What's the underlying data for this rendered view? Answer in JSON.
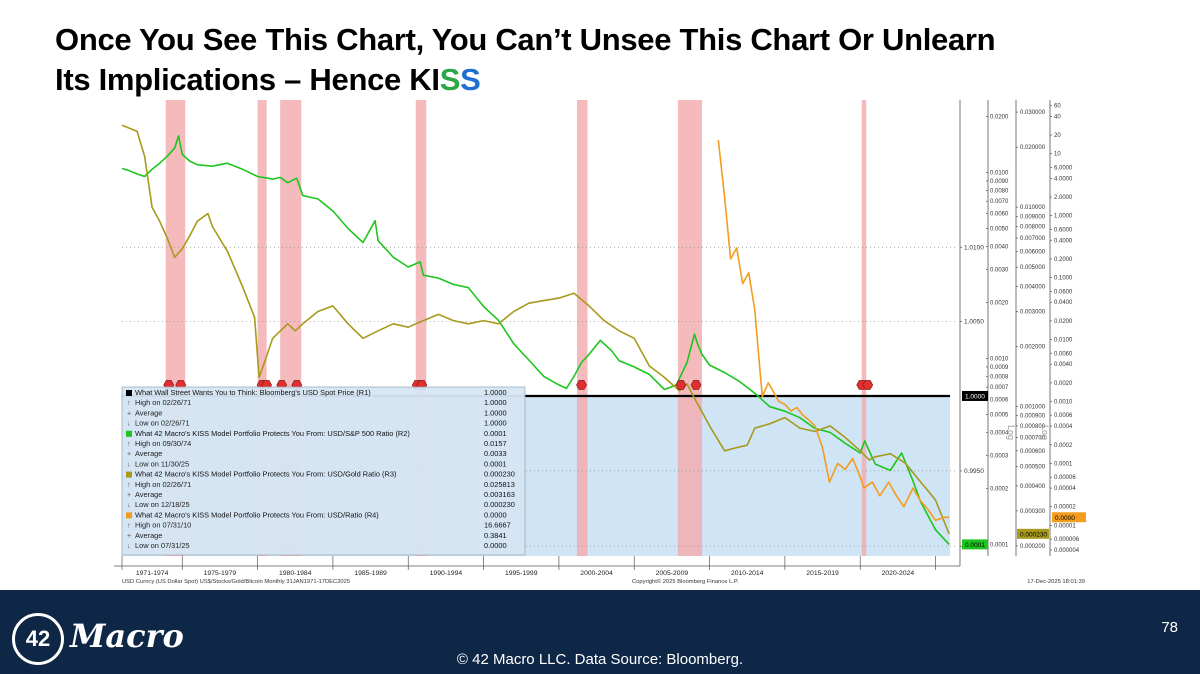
{
  "slide": {
    "title_line1": "Once You See This Chart, You Can’t Unsee This Chart Or Unlearn",
    "title_line2_prefix": "Its Implications – Hence KI",
    "title_s1": "S",
    "title_s2": "S",
    "footer_logo_number": "42",
    "footer_logo_word": "Macro",
    "copyright": "© 42 Macro LLC. Data Source: Bloomberg.",
    "page_number": "78"
  },
  "chart_data": {
    "type": "line",
    "x_tick_labels": [
      "1971-1974",
      "1975-1979",
      "1980-1984",
      "1985-1989",
      "1990-1994",
      "1995-1999",
      "2000-2004",
      "2005-2009",
      "2010-2014",
      "2015-2019",
      "2020-2024"
    ],
    "source_left": "USD Curncy (US Dollar Spot) US$/Stocks/Gold/Bitcoin Monthly 31JAN1971-17DEC2025",
    "source_center": "Copyright© 2025 Bloomberg Finance L.P.",
    "source_right": "17-Dec-2025 18:01:39",
    "log_labels": [
      "Log",
      "Log"
    ],
    "colors": {
      "r1": "#000000",
      "r2": "#1ec51e",
      "r3": "#a79a1c",
      "r4": "#f39c1e",
      "plot_fill": "#cfe4f5",
      "recession": "#f3aeb0",
      "marker": "#e02f2f"
    },
    "recession_shading": [
      {
        "start": 1973.9,
        "end": 1975.2
      },
      {
        "start": 1980.0,
        "end": 1980.6
      },
      {
        "start": 1981.5,
        "end": 1982.9
      },
      {
        "start": 1990.5,
        "end": 1991.2
      },
      {
        "start": 2001.2,
        "end": 2001.9
      },
      {
        "start": 2007.9,
        "end": 2009.5
      },
      {
        "start": 2020.1,
        "end": 2020.4
      }
    ],
    "signal_markers": [
      {
        "date": 1974.1
      },
      {
        "date": 1974.9
      },
      {
        "date": 1980.3
      },
      {
        "date": 1980.6
      },
      {
        "date": 1981.6
      },
      {
        "date": 1982.6
      },
      {
        "date": 1990.6
      },
      {
        "date": 1990.9
      },
      {
        "date": 2001.5
      },
      {
        "date": 2008.1
      },
      {
        "date": 2009.1
      },
      {
        "date": 2020.1
      },
      {
        "date": 2020.5
      }
    ],
    "x_range": [
      1971.0,
      2025.96
    ],
    "axes": [
      {
        "id": "R1",
        "scale": "log",
        "ylim": [
          0.98935,
          1.02
        ],
        "ticks": [
          "1.0100",
          "1.0050",
          "0.9950",
          "0.9900"
        ]
      },
      {
        "id": "R2",
        "scale": "log",
        "ylim": [
          8.66e-05,
          0.0245
        ],
        "ticks": [
          "0.0200",
          "0.0100",
          "0.0090",
          "0.0080",
          "0.0070",
          "0.0060",
          "0.0050",
          "0.0040",
          "0.0030",
          "0.0020",
          "0.0010",
          "0.0009",
          "0.0008",
          "0.0007",
          "0.0006",
          "0.0005",
          "0.0004",
          "0.0003",
          "0.0002",
          "0.0001"
        ]
      },
      {
        "id": "R3",
        "scale": "log",
        "ylim": [
          0.000178,
          0.0345
        ],
        "ticks": [
          "0.030000",
          "0.020000",
          "0.010000",
          "0.009000",
          "0.008000",
          "0.007000",
          "0.006000",
          "0.005000",
          "0.004000",
          "0.003000",
          "0.002000",
          "0.001000",
          "0.000900",
          "0.000800",
          "0.000700",
          "0.000600",
          "0.000500",
          "0.000400",
          "0.000300",
          "0.000200"
        ]
      },
      {
        "id": "R4",
        "scale": "log",
        "ylim": [
          3.2e-06,
          73.6
        ],
        "ticks": [
          "60",
          "40",
          "20",
          "10",
          "6.0000",
          "4.0000",
          "2.0000",
          "1.0000",
          "0.6000",
          "0.4000",
          "0.2000",
          "0.1000",
          "0.0600",
          "0.0400",
          "0.0200",
          "0.0100",
          "0.0060",
          "0.0040",
          "0.0020",
          "0.0010",
          "0.0006",
          "0.0004",
          "0.0002",
          "0.0001",
          "0.00006",
          "0.00004",
          "0.00002",
          "0.00001",
          "0.000006",
          "0.000004"
        ]
      }
    ],
    "last_value_tags": [
      {
        "axis": "R1",
        "label": "1.0000",
        "y": 1.0
      },
      {
        "axis": "R2",
        "label": "0.0001",
        "y": 0.0001
      },
      {
        "axis": "R3",
        "label": "0.000230",
        "y": 0.00023
      },
      {
        "axis": "R4",
        "label": "0.0000",
        "y": 1.35e-05
      }
    ],
    "legend": {
      "rows": [
        {
          "kind": "series",
          "series": "r1",
          "label": "What Wall Street Wants You to Think: Bloomberg's USD Spot Price (R1)",
          "value": "1.0000"
        },
        {
          "kind": "stat",
          "symbol": "↑",
          "label": "High on 02/26/71",
          "value": "1.0000"
        },
        {
          "kind": "stat",
          "symbol": "+",
          "label": "Average",
          "value": "1.0000"
        },
        {
          "kind": "stat",
          "symbol": "↓",
          "label": "Low on 02/26/71",
          "value": "1.0000"
        },
        {
          "kind": "series",
          "series": "r2",
          "label": "What 42 Macro's KISS Model Portfolio Protects You From: USD/S&P 500 Ratio (R2)",
          "value": "0.0001"
        },
        {
          "kind": "stat",
          "symbol": "↑",
          "label": "High on 09/30/74",
          "value": "0.0157"
        },
        {
          "kind": "stat",
          "symbol": "+",
          "label": "Average",
          "value": "0.0033"
        },
        {
          "kind": "stat",
          "symbol": "↓",
          "label": "Low on 11/30/25",
          "value": "0.0001"
        },
        {
          "kind": "series",
          "series": "r3",
          "label": "What 42 Macro's KISS Model Portfolio Protects You From: USD/Gold Ratio (R3)",
          "value": "0.000230"
        },
        {
          "kind": "stat",
          "symbol": "↑",
          "label": "High on 02/26/71",
          "value": "0.025813"
        },
        {
          "kind": "stat",
          "symbol": "+",
          "label": "Average",
          "value": "0.003163"
        },
        {
          "kind": "stat",
          "symbol": "↓",
          "label": "Low on 12/18/25",
          "value": "0.000230"
        },
        {
          "kind": "series",
          "series": "r4",
          "label": "What 42 Macro's KISS Model Portfolio Protects You From: USD/Ratio (R4)",
          "value": "0.0000"
        },
        {
          "kind": "stat",
          "symbol": "↑",
          "label": "High on 07/31/10",
          "value": "16.6667"
        },
        {
          "kind": "stat",
          "symbol": "+",
          "label": "Average",
          "value": "0.3841"
        },
        {
          "kind": "stat",
          "symbol": "↓",
          "label": "Low on 07/31/25",
          "value": "0.0000"
        }
      ]
    },
    "series": [
      {
        "id": "r1",
        "axis": "R1",
        "x": [
          1971.0,
          2025.96
        ],
        "y": [
          1.0,
          1.0
        ]
      },
      {
        "id": "r2",
        "axis": "R2",
        "x": [
          1971.0,
          1971.5,
          1972.0,
          1972.5,
          1973.0,
          1973.5,
          1974.0,
          1974.5,
          1974.75,
          1975.0,
          1975.5,
          1976.0,
          1977.0,
          1978.0,
          1979.0,
          1980.0,
          1981.0,
          1981.5,
          1982.0,
          1982.6,
          1983.0,
          1984.0,
          1985.0,
          1986.0,
          1987.0,
          1987.8,
          1988.0,
          1989.0,
          1990.0,
          1990.8,
          1991.0,
          1992.0,
          1993.0,
          1994.0,
          1995.0,
          1996.0,
          1997.0,
          1998.0,
          1999.0,
          2000.0,
          2000.5,
          2001.0,
          2001.5,
          2002.0,
          2002.75,
          2003.5,
          2004.0,
          2005.0,
          2006.0,
          2007.0,
          2007.8,
          2008.5,
          2009.0,
          2009.2,
          2009.5,
          2010.0,
          2011.0,
          2012.0,
          2013.0,
          2014.0,
          2015.0,
          2016.0,
          2017.0,
          2018.0,
          2019.0,
          2020.0,
          2020.3,
          2021.0,
          2022.0,
          2022.75,
          2023.5,
          2024.0,
          2025.0,
          2025.9
        ],
        "y": [
          0.0105,
          0.0102,
          0.0098,
          0.0095,
          0.0104,
          0.0112,
          0.0122,
          0.0135,
          0.0157,
          0.0125,
          0.0115,
          0.011,
          0.0108,
          0.0112,
          0.0104,
          0.0095,
          0.0092,
          0.0094,
          0.0088,
          0.0093,
          0.0075,
          0.0072,
          0.0062,
          0.005,
          0.0042,
          0.0055,
          0.0043,
          0.0035,
          0.0031,
          0.0033,
          0.0028,
          0.0027,
          0.0025,
          0.0024,
          0.0019,
          0.0016,
          0.0012,
          0.00098,
          0.0008,
          0.00072,
          0.00069,
          0.0008,
          0.00095,
          0.00105,
          0.00125,
          0.0011,
          0.00097,
          0.0009,
          0.00082,
          0.00068,
          0.00072,
          0.00095,
          0.00135,
          0.0012,
          0.00105,
          0.00092,
          0.00084,
          0.00075,
          0.00065,
          0.00055,
          0.00052,
          0.00048,
          0.00042,
          0.0004,
          0.00035,
          0.00031,
          0.00036,
          0.00027,
          0.00025,
          0.00031,
          0.00022,
          0.00017,
          0.00012,
          0.0001
        ]
      },
      {
        "id": "r3",
        "axis": "R3",
        "x": [
          1971.0,
          1972.0,
          1972.5,
          1973.0,
          1973.5,
          1974.0,
          1974.5,
          1975.0,
          1975.5,
          1976.0,
          1976.7,
          1977.0,
          1978.0,
          1979.0,
          1979.8,
          1980.1,
          1980.5,
          1981.0,
          1982.0,
          1982.5,
          1983.0,
          1984.0,
          1985.0,
          1986.0,
          1987.0,
          1988.0,
          1989.0,
          1990.0,
          1991.0,
          1992.0,
          1993.0,
          1994.0,
          1995.0,
          1996.0,
          1997.0,
          1998.0,
          1999.0,
          2000.0,
          2001.0,
          2002.0,
          2003.0,
          2004.0,
          2005.0,
          2006.0,
          2007.0,
          2008.0,
          2008.5,
          2009.0,
          2010.0,
          2011.0,
          2011.7,
          2012.5,
          2013.0,
          2014.0,
          2015.0,
          2016.0,
          2017.0,
          2018.0,
          2019.0,
          2020.0,
          2020.6,
          2021.0,
          2022.0,
          2023.0,
          2024.0,
          2025.0,
          2025.9
        ],
        "y": [
          0.0258,
          0.024,
          0.018,
          0.01,
          0.0085,
          0.007,
          0.0056,
          0.0062,
          0.0072,
          0.0085,
          0.0093,
          0.008,
          0.006,
          0.004,
          0.0028,
          0.0014,
          0.0017,
          0.0022,
          0.0026,
          0.0024,
          0.0026,
          0.003,
          0.0032,
          0.0026,
          0.0022,
          0.0024,
          0.0026,
          0.0025,
          0.0027,
          0.0029,
          0.0027,
          0.0026,
          0.0027,
          0.0026,
          0.003,
          0.0033,
          0.0034,
          0.0035,
          0.0037,
          0.0032,
          0.0027,
          0.0024,
          0.0022,
          0.0016,
          0.0014,
          0.0012,
          0.0013,
          0.0011,
          0.0008,
          0.0006,
          0.00062,
          0.00064,
          0.00078,
          0.00082,
          0.00088,
          0.00078,
          0.00075,
          0.0008,
          0.0007,
          0.0006,
          0.00054,
          0.00056,
          0.00058,
          0.00052,
          0.00042,
          0.00034,
          0.00023
        ]
      },
      {
        "id": "r4",
        "axis": "R4",
        "x": [
          2010.58,
          2011.0,
          2011.4,
          2011.8,
          2012.2,
          2012.6,
          2013.0,
          2013.2,
          2013.5,
          2013.9,
          2014.2,
          2014.6,
          2015.0,
          2015.4,
          2015.8,
          2016.2,
          2016.6,
          2017.0,
          2017.5,
          2017.96,
          2018.5,
          2019.0,
          2019.5,
          2020.0,
          2020.25,
          2020.8,
          2021.3,
          2021.9,
          2022.4,
          2022.9,
          2023.5,
          2024.0,
          2024.5,
          2025.0,
          2025.58,
          2025.9
        ],
        "y": [
          16.6667,
          2.0,
          0.2,
          0.3,
          0.08,
          0.12,
          0.03,
          0.008,
          0.0012,
          0.002,
          0.0015,
          0.001,
          0.0009,
          0.0007,
          0.0008,
          0.0006,
          0.0005,
          0.0004,
          0.00018,
          5e-05,
          0.0001,
          8e-05,
          0.00012,
          6e-05,
          4e-05,
          5e-05,
          3e-05,
          5e-05,
          3e-05,
          2e-05,
          4e-05,
          2.5e-05,
          1.8e-05,
          1.2e-05,
          1.35e-05,
          1.35e-05
        ]
      }
    ]
  }
}
